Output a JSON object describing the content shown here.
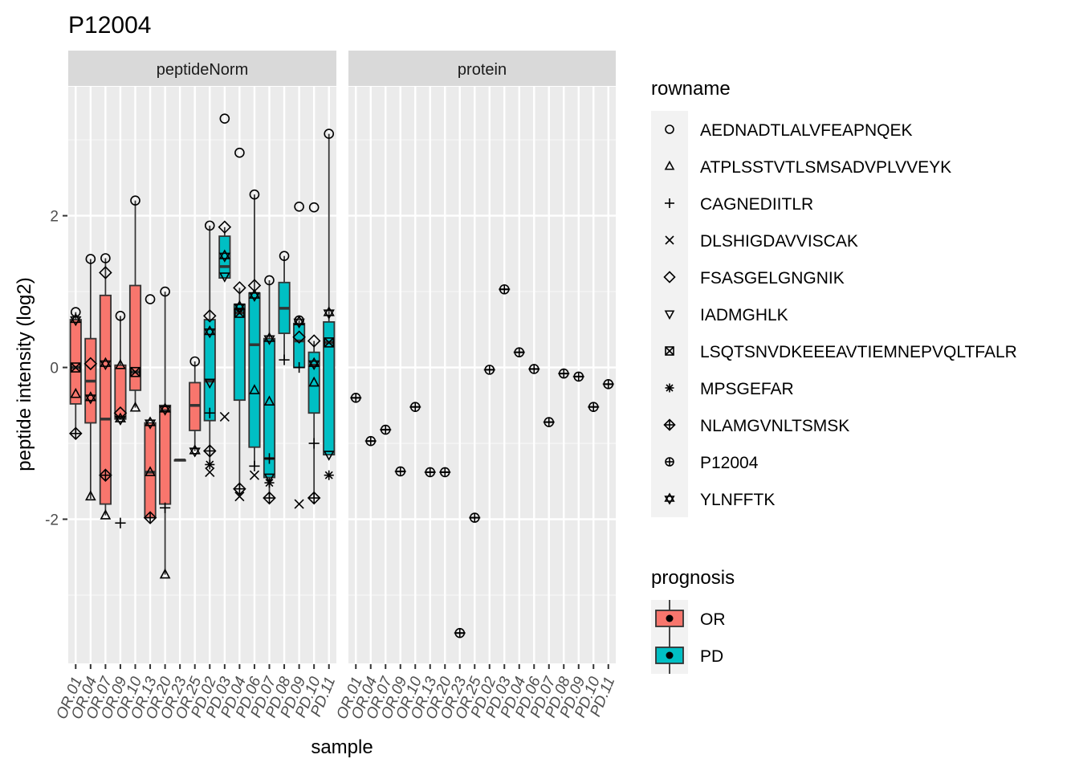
{
  "chart_data": {
    "type": "box",
    "title": "P12004",
    "xlabel": "sample",
    "ylabel": "peptide intensity (log2)",
    "ylim": [
      -3.9,
      3.7
    ],
    "yticks": [
      -2,
      0,
      2
    ],
    "grid": true,
    "facets": [
      "peptideNorm",
      "protein"
    ],
    "samples": [
      "OR.01",
      "OR.04",
      "OR.07",
      "OR.09",
      "OR.10",
      "OR.13",
      "OR.20",
      "OR.23",
      "OR.25",
      "PD.02",
      "PD.03",
      "PD.04",
      "PD.06",
      "PD.07",
      "PD.08",
      "PD.09",
      "PD.10",
      "PD.11"
    ],
    "prognosis": [
      "OR",
      "OR",
      "OR",
      "OR",
      "OR",
      "OR",
      "OR",
      "OR",
      "OR",
      "PD",
      "PD",
      "PD",
      "PD",
      "PD",
      "PD",
      "PD",
      "PD",
      "PD"
    ],
    "legend_rowname": {
      "title": "rowname",
      "items": [
        {
          "label": "AEDNADTLALVFEAPNQEK",
          "shape": "circle"
        },
        {
          "label": "ATPLSSTVTLSMSADVPLVVEYK",
          "shape": "triangle"
        },
        {
          "label": "CAGNEDIITLR",
          "shape": "plus"
        },
        {
          "label": "DLSHIGDAVVISCAK",
          "shape": "cross"
        },
        {
          "label": "FSASGELGNGNIK",
          "shape": "diamond"
        },
        {
          "label": "IADMGHLK",
          "shape": "triangle-down"
        },
        {
          "label": "LSQTSNVDKEEEAVTIEMNEPVQLTFALR",
          "shape": "square-cross"
        },
        {
          "label": "MPSGEFAR",
          "shape": "asterisk"
        },
        {
          "label": "NLAMGVNLTSMSK",
          "shape": "diamond-plus"
        },
        {
          "label": "P12004",
          "shape": "circle-plus"
        },
        {
          "label": "YLNFFTK",
          "shape": "star-triangles"
        }
      ]
    },
    "legend_prognosis": {
      "title": "prognosis",
      "items": [
        {
          "label": "OR",
          "color": "#F8766D"
        },
        {
          "label": "PD",
          "color": "#00BFC4"
        }
      ]
    },
    "boxes_peptideNorm": [
      {
        "sample": "OR.01",
        "q1": -0.48,
        "median": 0.0,
        "q3": 0.63,
        "wlo": -0.87,
        "whi": 0.73
      },
      {
        "sample": "OR.04",
        "q1": -0.73,
        "median": -0.18,
        "q3": 0.38,
        "wlo": -1.73,
        "whi": 1.43
      },
      {
        "sample": "OR.07",
        "q1": -1.8,
        "median": -0.68,
        "q3": 0.95,
        "wlo": -1.95,
        "whi": 1.44
      },
      {
        "sample": "OR.09",
        "q1": -0.68,
        "median": -0.66,
        "q3": 0.03,
        "wlo": -0.68,
        "whi": 0.68
      },
      {
        "sample": "OR.10",
        "q1": -0.3,
        "median": -0.06,
        "q3": 1.08,
        "wlo": -0.53,
        "whi": 2.2
      },
      {
        "sample": "OR.13",
        "q1": -1.98,
        "median": -1.38,
        "q3": -0.73,
        "wlo": -1.98,
        "whi": -0.73
      },
      {
        "sample": "OR.20",
        "q1": -1.8,
        "median": -0.57,
        "q3": -0.5,
        "wlo": -2.73,
        "whi": 1.0
      },
      {
        "sample": "OR.23",
        "q1": -1.22,
        "median": -1.22,
        "q3": -1.22,
        "wlo": -1.22,
        "whi": -1.22
      },
      {
        "sample": "OR.25",
        "q1": -0.83,
        "median": -0.5,
        "q3": -0.2,
        "wlo": -1.1,
        "whi": 0.08
      },
      {
        "sample": "PD.02",
        "q1": -0.7,
        "median": -0.18,
        "q3": 0.63,
        "wlo": -1.3,
        "whi": 1.87
      },
      {
        "sample": "PD.03",
        "q1": 1.18,
        "median": 1.33,
        "q3": 1.73,
        "wlo": 1.18,
        "whi": 1.85
      },
      {
        "sample": "PD.04",
        "q1": -0.43,
        "median": 0.72,
        "q3": 0.83,
        "wlo": -1.6,
        "whi": 1.05
      },
      {
        "sample": "PD.06",
        "q1": -1.05,
        "median": 0.3,
        "q3": 0.98,
        "wlo": -1.3,
        "whi": 2.28
      },
      {
        "sample": "PD.07",
        "q1": -1.45,
        "median": -1.2,
        "q3": 0.38,
        "wlo": -1.72,
        "whi": 1.15
      },
      {
        "sample": "PD.08",
        "q1": 0.45,
        "median": 0.78,
        "q3": 1.12,
        "wlo": 0.1,
        "whi": 1.47
      },
      {
        "sample": "PD.09",
        "q1": 0.0,
        "median": 0.35,
        "q3": 0.58,
        "wlo": 0.0,
        "whi": 0.62
      },
      {
        "sample": "PD.10",
        "q1": -0.6,
        "median": 0.03,
        "q3": 0.2,
        "wlo": -1.72,
        "whi": 0.35
      },
      {
        "sample": "PD.11",
        "q1": -1.15,
        "median": 0.33,
        "q3": 0.6,
        "wlo": -1.15,
        "whi": 3.08
      }
    ],
    "outliers_peptideNorm": [
      {
        "sample": "OR.20",
        "value": -1.85,
        "shape": "plus"
      },
      {
        "sample": "OR.13",
        "value": 0.9,
        "shape": "circle"
      },
      {
        "sample": "PD.03",
        "value": 3.28,
        "shape": "circle"
      },
      {
        "sample": "PD.03",
        "value": -0.65,
        "shape": "cross"
      },
      {
        "sample": "PD.04",
        "value": 2.83,
        "shape": "circle"
      },
      {
        "sample": "PD.09",
        "value": 2.12,
        "shape": "circle"
      },
      {
        "sample": "PD.09",
        "value": -1.8,
        "shape": "cross"
      },
      {
        "sample": "PD.10",
        "value": 2.11,
        "shape": "circle"
      },
      {
        "sample": "OR.09",
        "value": -2.05,
        "shape": "plus"
      }
    ],
    "points_peptideNorm": [
      {
        "sample": "OR.01",
        "value": 0.73,
        "shape": "circle"
      },
      {
        "sample": "OR.01",
        "value": 0.63,
        "shape": "star-triangles"
      },
      {
        "sample": "OR.01",
        "value": 0.0,
        "shape": "square-cross"
      },
      {
        "sample": "OR.01",
        "value": -0.35,
        "shape": "triangle"
      },
      {
        "sample": "OR.01",
        "value": -0.87,
        "shape": "diamond-plus"
      },
      {
        "sample": "OR.04",
        "value": 1.43,
        "shape": "circle"
      },
      {
        "sample": "OR.04",
        "value": 0.05,
        "shape": "diamond"
      },
      {
        "sample": "OR.04",
        "value": -0.4,
        "shape": "star-triangles"
      },
      {
        "sample": "OR.04",
        "value": -1.7,
        "shape": "triangle"
      },
      {
        "sample": "OR.07",
        "value": 1.44,
        "shape": "circle"
      },
      {
        "sample": "OR.07",
        "value": 1.25,
        "shape": "diamond"
      },
      {
        "sample": "OR.07",
        "value": 0.05,
        "shape": "star-triangles"
      },
      {
        "sample": "OR.07",
        "value": -1.42,
        "shape": "diamond-plus"
      },
      {
        "sample": "OR.07",
        "value": -1.95,
        "shape": "triangle"
      },
      {
        "sample": "OR.09",
        "value": 0.68,
        "shape": "circle"
      },
      {
        "sample": "OR.09",
        "value": 0.03,
        "shape": "triangle"
      },
      {
        "sample": "OR.09",
        "value": -0.6,
        "shape": "diamond"
      },
      {
        "sample": "OR.09",
        "value": -0.68,
        "shape": "star-triangles"
      },
      {
        "sample": "OR.10",
        "value": 2.2,
        "shape": "circle"
      },
      {
        "sample": "OR.10",
        "value": -0.06,
        "shape": "square-cross"
      },
      {
        "sample": "OR.10",
        "value": -0.53,
        "shape": "triangle"
      },
      {
        "sample": "OR.13",
        "value": -0.73,
        "shape": "star-triangles"
      },
      {
        "sample": "OR.13",
        "value": -1.38,
        "shape": "triangle"
      },
      {
        "sample": "OR.13",
        "value": -1.98,
        "shape": "diamond-plus"
      },
      {
        "sample": "OR.20",
        "value": 1.0,
        "shape": "circle"
      },
      {
        "sample": "OR.20",
        "value": -0.55,
        "shape": "star-triangles"
      },
      {
        "sample": "OR.20",
        "value": -2.73,
        "shape": "triangle"
      },
      {
        "sample": "OR.25",
        "value": 0.08,
        "shape": "circle"
      },
      {
        "sample": "OR.25",
        "value": -1.1,
        "shape": "star-triangles"
      },
      {
        "sample": "PD.02",
        "value": 1.87,
        "shape": "circle"
      },
      {
        "sample": "PD.02",
        "value": 0.68,
        "shape": "diamond"
      },
      {
        "sample": "PD.02",
        "value": 0.47,
        "shape": "star-triangles"
      },
      {
        "sample": "PD.02",
        "value": -0.2,
        "shape": "triangle-down"
      },
      {
        "sample": "PD.02",
        "value": -0.6,
        "shape": "plus"
      },
      {
        "sample": "PD.02",
        "value": -1.1,
        "shape": "diamond-plus"
      },
      {
        "sample": "PD.02",
        "value": -1.28,
        "shape": "asterisk"
      },
      {
        "sample": "PD.02",
        "value": -1.38,
        "shape": "cross"
      },
      {
        "sample": "PD.03",
        "value": 1.85,
        "shape": "diamond"
      },
      {
        "sample": "PD.03",
        "value": 1.47,
        "shape": "star-triangles"
      },
      {
        "sample": "PD.03",
        "value": 1.2,
        "shape": "triangle-down"
      },
      {
        "sample": "PD.04",
        "value": 1.05,
        "shape": "diamond"
      },
      {
        "sample": "PD.04",
        "value": 0.8,
        "shape": "star-triangles"
      },
      {
        "sample": "PD.04",
        "value": 0.72,
        "shape": "square-cross"
      },
      {
        "sample": "PD.04",
        "value": -1.6,
        "shape": "diamond-plus"
      },
      {
        "sample": "PD.04",
        "value": -1.7,
        "shape": "cross"
      },
      {
        "sample": "PD.06",
        "value": 2.28,
        "shape": "circle"
      },
      {
        "sample": "PD.06",
        "value": 1.08,
        "shape": "diamond"
      },
      {
        "sample": "PD.06",
        "value": 0.95,
        "shape": "star-triangles"
      },
      {
        "sample": "PD.06",
        "value": -0.3,
        "shape": "triangle"
      },
      {
        "sample": "PD.06",
        "value": -1.3,
        "shape": "plus"
      },
      {
        "sample": "PD.06",
        "value": -1.42,
        "shape": "cross"
      },
      {
        "sample": "PD.07",
        "value": 1.15,
        "shape": "circle"
      },
      {
        "sample": "PD.07",
        "value": 0.38,
        "shape": "star-triangles"
      },
      {
        "sample": "PD.07",
        "value": -0.45,
        "shape": "triangle"
      },
      {
        "sample": "PD.07",
        "value": -1.2,
        "shape": "plus"
      },
      {
        "sample": "PD.07",
        "value": -1.45,
        "shape": "triangle-down"
      },
      {
        "sample": "PD.07",
        "value": -1.52,
        "shape": "asterisk"
      },
      {
        "sample": "PD.07",
        "value": -1.72,
        "shape": "diamond-plus"
      },
      {
        "sample": "PD.08",
        "value": 1.47,
        "shape": "circle"
      },
      {
        "sample": "PD.08",
        "value": 0.1,
        "shape": "plus"
      },
      {
        "sample": "PD.09",
        "value": 0.62,
        "shape": "circle"
      },
      {
        "sample": "PD.09",
        "value": 0.6,
        "shape": "star-triangles"
      },
      {
        "sample": "PD.09",
        "value": 0.4,
        "shape": "diamond"
      },
      {
        "sample": "PD.09",
        "value": 0.0,
        "shape": "plus"
      },
      {
        "sample": "PD.10",
        "value": 0.35,
        "shape": "diamond"
      },
      {
        "sample": "PD.10",
        "value": 0.05,
        "shape": "star-triangles"
      },
      {
        "sample": "PD.10",
        "value": -0.2,
        "shape": "triangle"
      },
      {
        "sample": "PD.10",
        "value": -1.0,
        "shape": "plus"
      },
      {
        "sample": "PD.10",
        "value": -1.72,
        "shape": "diamond-plus"
      },
      {
        "sample": "PD.11",
        "value": 3.08,
        "shape": "circle"
      },
      {
        "sample": "PD.11",
        "value": 0.72,
        "shape": "star-triangles"
      },
      {
        "sample": "PD.11",
        "value": 0.33,
        "shape": "square-cross"
      },
      {
        "sample": "PD.11",
        "value": -1.15,
        "shape": "triangle-down"
      },
      {
        "sample": "PD.11",
        "value": -1.42,
        "shape": "asterisk"
      }
    ],
    "protein_values": [
      {
        "sample": "OR.01",
        "value": -0.4
      },
      {
        "sample": "OR.04",
        "value": -0.97
      },
      {
        "sample": "OR.07",
        "value": -0.82
      },
      {
        "sample": "OR.09",
        "value": -1.37
      },
      {
        "sample": "OR.10",
        "value": -0.52
      },
      {
        "sample": "OR.13",
        "value": -1.38
      },
      {
        "sample": "OR.20",
        "value": -1.38
      },
      {
        "sample": "OR.23",
        "value": -3.5
      },
      {
        "sample": "OR.25",
        "value": -1.98
      },
      {
        "sample": "PD.02",
        "value": -0.03
      },
      {
        "sample": "PD.03",
        "value": 1.03
      },
      {
        "sample": "PD.04",
        "value": 0.2
      },
      {
        "sample": "PD.06",
        "value": -0.02
      },
      {
        "sample": "PD.07",
        "value": -0.72
      },
      {
        "sample": "PD.08",
        "value": -0.08
      },
      {
        "sample": "PD.09",
        "value": -0.12
      },
      {
        "sample": "PD.10",
        "value": -0.52
      },
      {
        "sample": "PD.11",
        "value": -0.22
      }
    ]
  }
}
